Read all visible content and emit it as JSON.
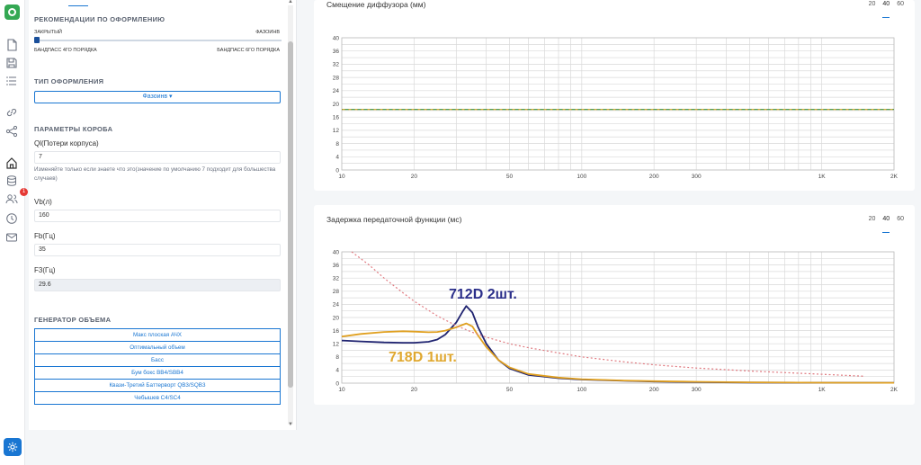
{
  "sidebar_rail": {
    "icons": [
      "logo-icon",
      "file-icon",
      "save-icon",
      "list-icon",
      "link-icon",
      "share-icon",
      "home-icon",
      "database-icon",
      "users-icon",
      "clock-icon",
      "mail-icon",
      "gear-icon"
    ],
    "badge": "1"
  },
  "panel": {
    "recommendations": {
      "title": "РЕКОМЕНДАЦИИ ПО ОФОРМЛЕНИЮ",
      "left_top": "ЗАКРЫТЫЙ",
      "right_top": "ФАЗОИНВ",
      "left_bottom": "БАНДПАСС 4ГО ПОРЯДКА",
      "right_bottom": "БАНДПАСС 6ГО ПОРЯДКА",
      "slider_value": 0
    },
    "enclosure_type": {
      "title": "ТИП ОФОРМЛЕНИЯ",
      "selected": "Фазоинв ▾"
    },
    "box_params": {
      "title": "ПАРАМЕТРЫ КОРОБА",
      "ql_label": "Ql(Потери корпуса)",
      "ql_value": "7",
      "ql_hint": "Изменяйте только если знаете что это(значение по умолчанию 7 подходит для большества случаев)",
      "vb_label": "Vb(л)",
      "vb_value": "160",
      "fb_label": "Fb(Гц)",
      "fb_value": "35",
      "f3_label": "F3(Гц)",
      "f3_value": "29.6"
    },
    "volume_generator": {
      "title": "ГЕНЕРАТОР ОБЪЕМА",
      "items": [
        "Макс плоская АЧХ",
        "Оптимальный объем",
        "Басс",
        "Бум бокс BB4/SBB4",
        "Квази-Третий Баттерворт QB3/SQB3",
        "Чебышев C4/SC4"
      ]
    }
  },
  "charts": {
    "window_options": [
      "20",
      "40",
      "60"
    ],
    "active_window": "40",
    "cone_excursion": {
      "title": "Смещение диффузора (мм)"
    },
    "group_delay": {
      "title": "Задержка передаточной функции (мс)"
    }
  },
  "chart_data": [
    {
      "type": "line",
      "title": "Смещение диффузора (мм)",
      "x_scale": "log",
      "xlim": [
        10,
        2000
      ],
      "ylim": [
        0,
        40
      ],
      "x_ticks": [
        "10",
        "20",
        "50",
        "100",
        "200",
        "300",
        "1K",
        "2K"
      ],
      "y_ticks": [
        "0",
        "4",
        "8",
        "12",
        "16",
        "20",
        "24",
        "28",
        "32",
        "36",
        "40"
      ],
      "grid": true,
      "series": [
        {
          "style": "dashed",
          "color": "#c8a020",
          "x": [
            10,
            2000
          ],
          "y": [
            18.3,
            18.3
          ]
        },
        {
          "style": "dashed",
          "color": "#3a8f3a",
          "x": [
            10,
            2000
          ],
          "y": [
            18.3,
            18.3
          ]
        }
      ]
    },
    {
      "type": "line",
      "title": "Задержка передаточной функции (мс)",
      "x_scale": "log",
      "xlim": [
        10,
        2000
      ],
      "ylim": [
        0,
        40
      ],
      "x_ticks": [
        "10",
        "20",
        "50",
        "100",
        "200",
        "300",
        "1K",
        "2K"
      ],
      "y_ticks": [
        "0",
        "4",
        "8",
        "12",
        "16",
        "20",
        "24",
        "28",
        "32",
        "36",
        "40"
      ],
      "grid": true,
      "annotations": [
        {
          "text": "712D 2шт.",
          "color": "#2b2f8a"
        },
        {
          "text": "718D 1шт.",
          "color": "#e0a830"
        }
      ],
      "series": [
        {
          "color": "#1f2370",
          "x": [
            10,
            12,
            15,
            18,
            20,
            23,
            25,
            27,
            30,
            32,
            33,
            35,
            37,
            40,
            45,
            50,
            60,
            80,
            100,
            150,
            200,
            300,
            500,
            1000,
            2000
          ],
          "y": [
            13,
            12.7,
            12.4,
            12.3,
            12.3,
            12.6,
            13.3,
            14.8,
            18.5,
            22,
            23.5,
            21.5,
            17,
            12,
            7,
            4.5,
            2.5,
            1.5,
            1.1,
            0.7,
            0.5,
            0.3,
            0.2,
            0.15,
            0.1
          ]
        },
        {
          "color": "#e0a020",
          "x": [
            10,
            12,
            15,
            18,
            20,
            23,
            25,
            27,
            30,
            33,
            35,
            37,
            40,
            45,
            50,
            60,
            80,
            100,
            150,
            200,
            300,
            500,
            1000,
            2000
          ],
          "y": [
            14.2,
            15,
            15.6,
            15.8,
            15.7,
            15.5,
            15.6,
            16,
            17,
            18.2,
            17.3,
            14.5,
            11,
            7,
            4.8,
            2.8,
            1.7,
            1.2,
            0.8,
            0.6,
            0.4,
            0.25,
            0.15,
            0.1
          ]
        },
        {
          "color": "#e07a80",
          "style": "dotted",
          "x": [
            11,
            13,
            15,
            18,
            20,
            25,
            30,
            35,
            40,
            50,
            60,
            80,
            100,
            150,
            200,
            300,
            500,
            1000,
            1500
          ],
          "y": [
            40,
            36,
            32,
            27.5,
            25,
            20.5,
            17.5,
            15.5,
            14,
            12,
            10.8,
            9.2,
            8,
            6.5,
            5.6,
            4.6,
            3.7,
            2.7,
            2.1
          ]
        }
      ]
    }
  ]
}
